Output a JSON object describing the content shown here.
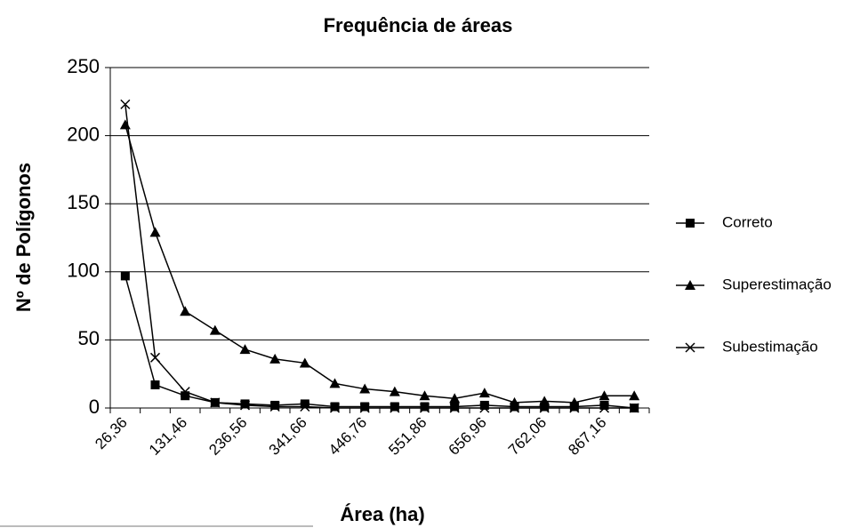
{
  "chart_data": {
    "type": "line",
    "title": "Frequência de áreas",
    "x_label": "Área (ha)",
    "y_label": "Nº de Polígonos",
    "categories": [
      "26,36",
      null,
      "131,46",
      null,
      "236,56",
      null,
      "341,66",
      null,
      "446,76",
      null,
      "551,86",
      null,
      "656,96",
      null,
      "762,06",
      null,
      "867,16",
      null
    ],
    "series": [
      {
        "name": "Correto",
        "color": "#000000",
        "marker": "square",
        "values": [
          97,
          17,
          9,
          4,
          3,
          2,
          3,
          1,
          1,
          1,
          1,
          1,
          2,
          1,
          1,
          1,
          2,
          0
        ]
      },
      {
        "name": "Superestimação",
        "color": "#000000",
        "marker": "triangle",
        "values": [
          208,
          129,
          71,
          57,
          43,
          36,
          33,
          18,
          14,
          12,
          9,
          7,
          11,
          4,
          5,
          4,
          9,
          9
        ]
      },
      {
        "name": "Subestimação",
        "color": "#000000",
        "marker": "x",
        "values": [
          223,
          37,
          12,
          4,
          2,
          1,
          1,
          0,
          0,
          0,
          0,
          0,
          0,
          0,
          0,
          0,
          0,
          0
        ]
      }
    ],
    "ylim": [
      0,
      250
    ],
    "yticks": [
      0,
      50,
      100,
      150,
      200,
      250
    ],
    "grid": true,
    "legend": "right"
  }
}
